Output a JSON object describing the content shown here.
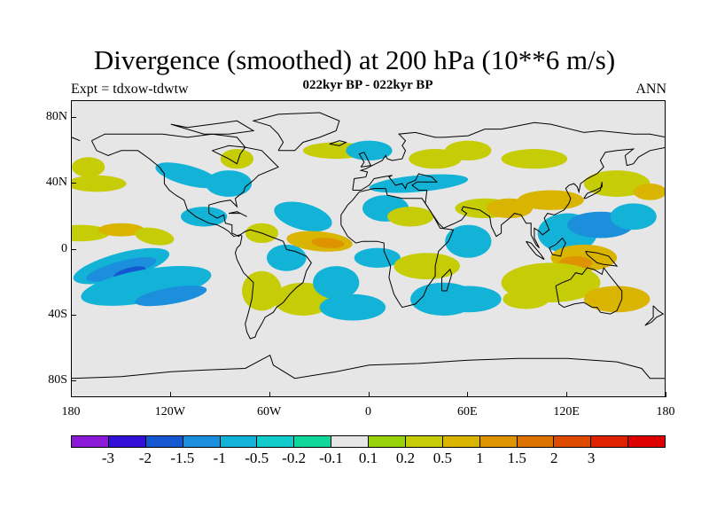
{
  "header": {
    "title": "Divergence (smoothed) at 200 hPa (10**6 m/s)",
    "subtitle": "022kyr BP - 022kyr BP",
    "left_label": "Expt = tdxow-tdwtw",
    "right_label": "ANN"
  },
  "map": {
    "projection": "cylindrical-equidistant",
    "lon_range": [
      -180,
      180
    ],
    "lat_range": [
      -90,
      90
    ],
    "background_color": "#e6e6e6",
    "coastline_color": "#000000",
    "lat_tick_labels": [
      "80N",
      "40N",
      "0",
      "40S",
      "80S"
    ],
    "lon_tick_labels": [
      "180",
      "120W",
      "60W",
      "0",
      "60E",
      "120E",
      "180"
    ],
    "lat_tick_values": [
      80,
      40,
      0,
      -40,
      -80
    ],
    "lon_tick_values": [
      -180,
      -120,
      -60,
      0,
      60,
      120,
      180
    ]
  },
  "colorbar": {
    "colors": [
      "#8b1ad8",
      "#3310d8",
      "#1457d0",
      "#1b8fdc",
      "#13b3d8",
      "#12cccc",
      "#10d79b",
      "#e6e6e6",
      "#98d20a",
      "#c6cc06",
      "#d9b400",
      "#dd9400",
      "#dc7200",
      "#dd4a00",
      "#df2200",
      "#dc0000"
    ],
    "labels": [
      "-3",
      "-2",
      "-1.5",
      "-1",
      "-0.5",
      "-0.2",
      "-0.1",
      "0.1",
      "0.2",
      "0.5",
      "1",
      "1.5",
      "2",
      "3"
    ]
  }
}
